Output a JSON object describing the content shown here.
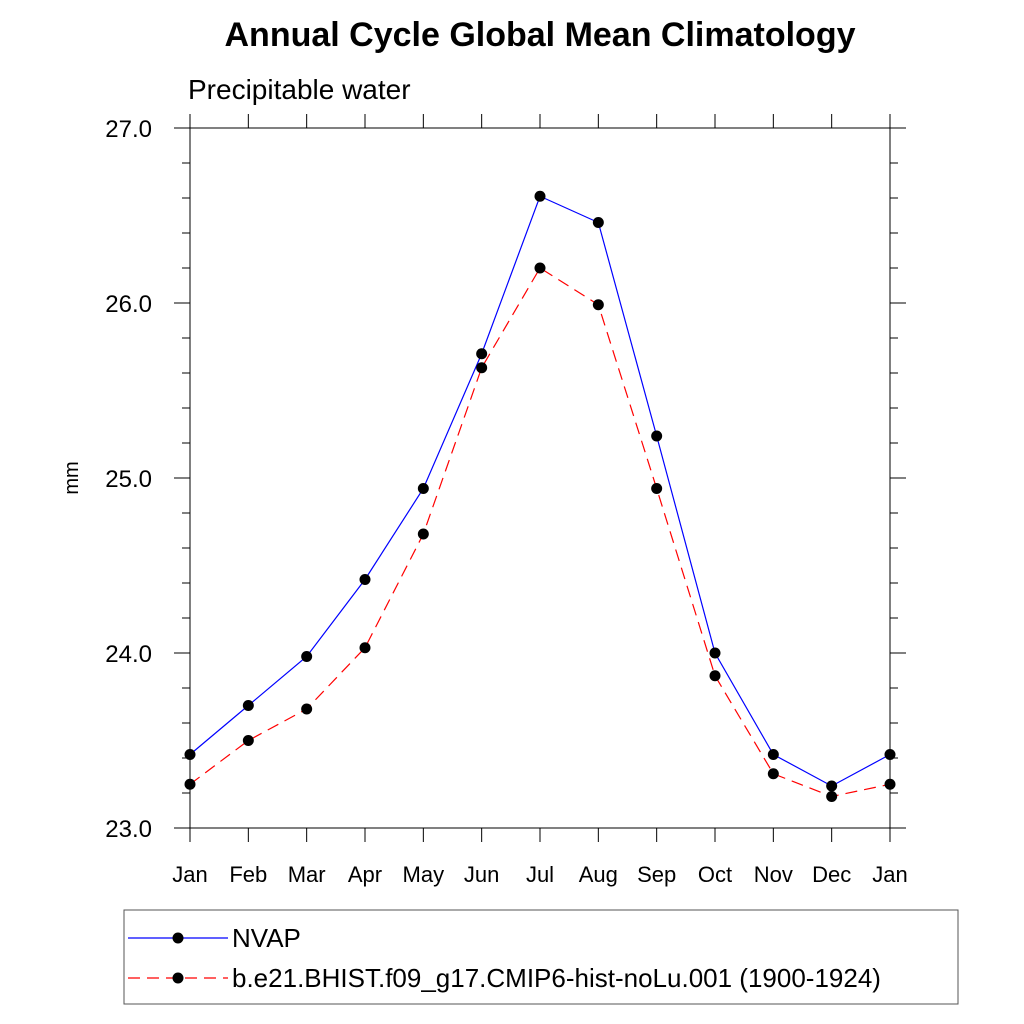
{
  "chart_data": {
    "type": "line",
    "title": "Annual Cycle Global Mean Climatology",
    "subtitle": "Precipitable water",
    "xlabel": "",
    "ylabel": "mm",
    "categories": [
      "Jan",
      "Feb",
      "Mar",
      "Apr",
      "May",
      "Jun",
      "Jul",
      "Aug",
      "Sep",
      "Oct",
      "Nov",
      "Dec",
      "Jan"
    ],
    "ylim": [
      23.0,
      27.0
    ],
    "yticks": [
      "23.0",
      "24.0",
      "25.0",
      "26.0",
      "27.0"
    ],
    "series": [
      {
        "name": "NVAP",
        "color": "#0000ff",
        "dash": "solid",
        "values": [
          23.42,
          23.7,
          23.98,
          24.42,
          24.94,
          25.71,
          26.61,
          26.46,
          25.24,
          24.0,
          23.42,
          23.24,
          23.42
        ]
      },
      {
        "name": "b.e21.BHIST.f09_g17.CMIP6-hist-noLu.001 (1900-1924)",
        "color": "#ff0000",
        "dash": "dashed",
        "values": [
          23.25,
          23.5,
          23.68,
          24.03,
          24.68,
          25.63,
          26.2,
          25.99,
          24.94,
          23.87,
          23.31,
          23.18,
          23.25
        ]
      }
    ],
    "legend_position": "bottom"
  }
}
